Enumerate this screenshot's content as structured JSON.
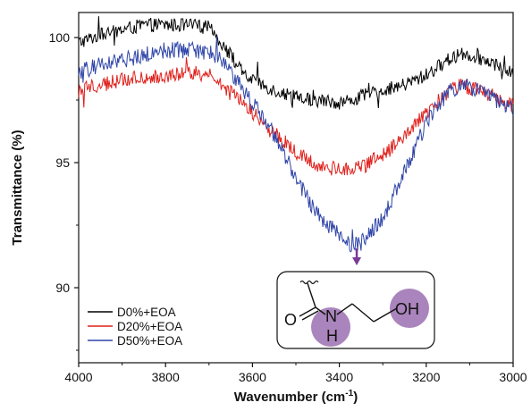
{
  "chart_data": {
    "type": "line",
    "xlabel": "Wavenumber (cm",
    "xlabel_sup": "-1",
    "xlabel_end": ")",
    "ylabel": "Transmittance (%)",
    "xlim": [
      4000,
      3000
    ],
    "ylim": [
      87,
      101
    ],
    "x_ticks": [
      4000,
      3800,
      3600,
      3400,
      3200,
      3000
    ],
    "x_tick_labels": [
      "4000",
      "3800",
      "3600",
      "3400",
      "3200",
      "3000"
    ],
    "y_ticks": [
      90,
      95,
      100
    ],
    "y_tick_labels": [
      "90",
      "95",
      "100"
    ],
    "legend_position": "bottom-left",
    "series": [
      {
        "name": "D0%+EOA",
        "color": "#000000",
        "noise": 0.28,
        "x": [
          4000,
          3950,
          3900,
          3850,
          3800,
          3750,
          3700,
          3680,
          3650,
          3620,
          3600,
          3550,
          3500,
          3450,
          3400,
          3370,
          3340,
          3300,
          3250,
          3200,
          3150,
          3120,
          3100,
          3050,
          3020,
          3000
        ],
        "y": [
          99.8,
          100.1,
          100.3,
          100.5,
          100.5,
          100.5,
          100.4,
          100.0,
          99.3,
          98.5,
          98.3,
          97.9,
          97.6,
          97.5,
          97.4,
          97.5,
          97.7,
          97.9,
          98.1,
          98.5,
          99.1,
          99.4,
          99.3,
          99.0,
          98.8,
          98.5
        ]
      },
      {
        "name": "D20%+EOA",
        "color": "#e0201b",
        "noise": 0.3,
        "x": [
          4000,
          3950,
          3900,
          3850,
          3800,
          3750,
          3700,
          3680,
          3650,
          3600,
          3550,
          3500,
          3450,
          3400,
          3370,
          3350,
          3300,
          3250,
          3200,
          3150,
          3120,
          3100,
          3050,
          3020,
          3000
        ],
        "y": [
          97.9,
          98.1,
          98.3,
          98.4,
          98.5,
          98.6,
          98.5,
          98.3,
          97.8,
          97.0,
          96.2,
          95.4,
          94.9,
          94.7,
          94.7,
          94.8,
          95.3,
          96.0,
          97.0,
          97.8,
          98.1,
          98.0,
          97.7,
          97.4,
          97.3
        ]
      },
      {
        "name": "D50%+EOA",
        "color": "#2f45a8",
        "noise": 0.33,
        "x": [
          4000,
          3950,
          3900,
          3850,
          3800,
          3750,
          3700,
          3680,
          3650,
          3600,
          3550,
          3500,
          3450,
          3400,
          3370,
          3350,
          3300,
          3250,
          3200,
          3150,
          3120,
          3100,
          3050,
          3020,
          3000
        ],
        "y": [
          98.6,
          98.9,
          99.1,
          99.3,
          99.5,
          99.5,
          99.4,
          99.2,
          98.6,
          97.4,
          96.1,
          94.4,
          92.9,
          92.1,
          91.7,
          91.8,
          92.8,
          94.6,
          96.6,
          97.8,
          98.1,
          98.0,
          97.6,
          97.3,
          97.2
        ]
      }
    ],
    "annotation": {
      "arrow_at_x": 3360,
      "arrow_color": "#7a3b96",
      "molecule_labels": {
        "carbonyl_o": "O",
        "amine": "N",
        "amine_h": "H",
        "hydroxyl": "OH"
      },
      "highlight_color": "#9b6fb0"
    }
  }
}
